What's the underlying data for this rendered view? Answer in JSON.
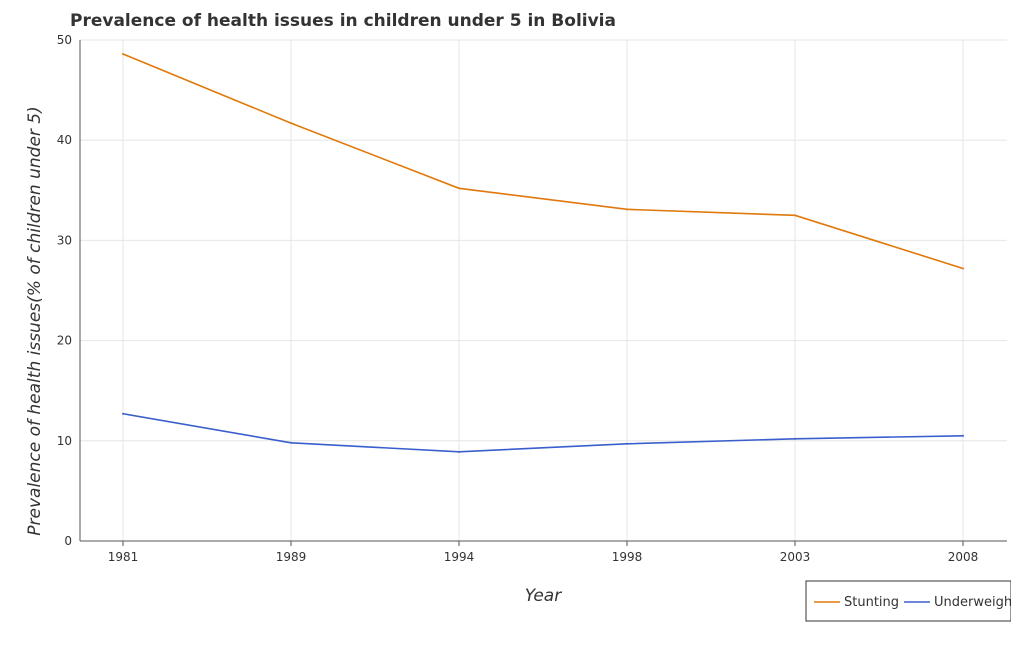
{
  "chart_data": {
    "type": "line",
    "title": "Prevalence of health issues in children under 5 in Bolivia",
    "xlabel": "Year",
    "ylabel": "Prevalence of health issues(% of children under 5)",
    "categories": [
      "1981",
      "1989",
      "1994",
      "1998",
      "2003",
      "2008"
    ],
    "ylim": [
      0,
      50
    ],
    "yticks": [
      "0",
      "10",
      "20",
      "30",
      "40",
      "50"
    ],
    "grid": true,
    "legend_position": "bottom-right",
    "series": [
      {
        "name": "Stunting",
        "color": "#e0780a",
        "values": [
          48.6,
          41.7,
          35.2,
          33.1,
          32.5,
          27.2
        ]
      },
      {
        "name": "Underweight",
        "color": "#3a5fcd",
        "values": [
          12.7,
          9.8,
          8.9,
          9.7,
          10.2,
          10.5
        ]
      }
    ]
  }
}
